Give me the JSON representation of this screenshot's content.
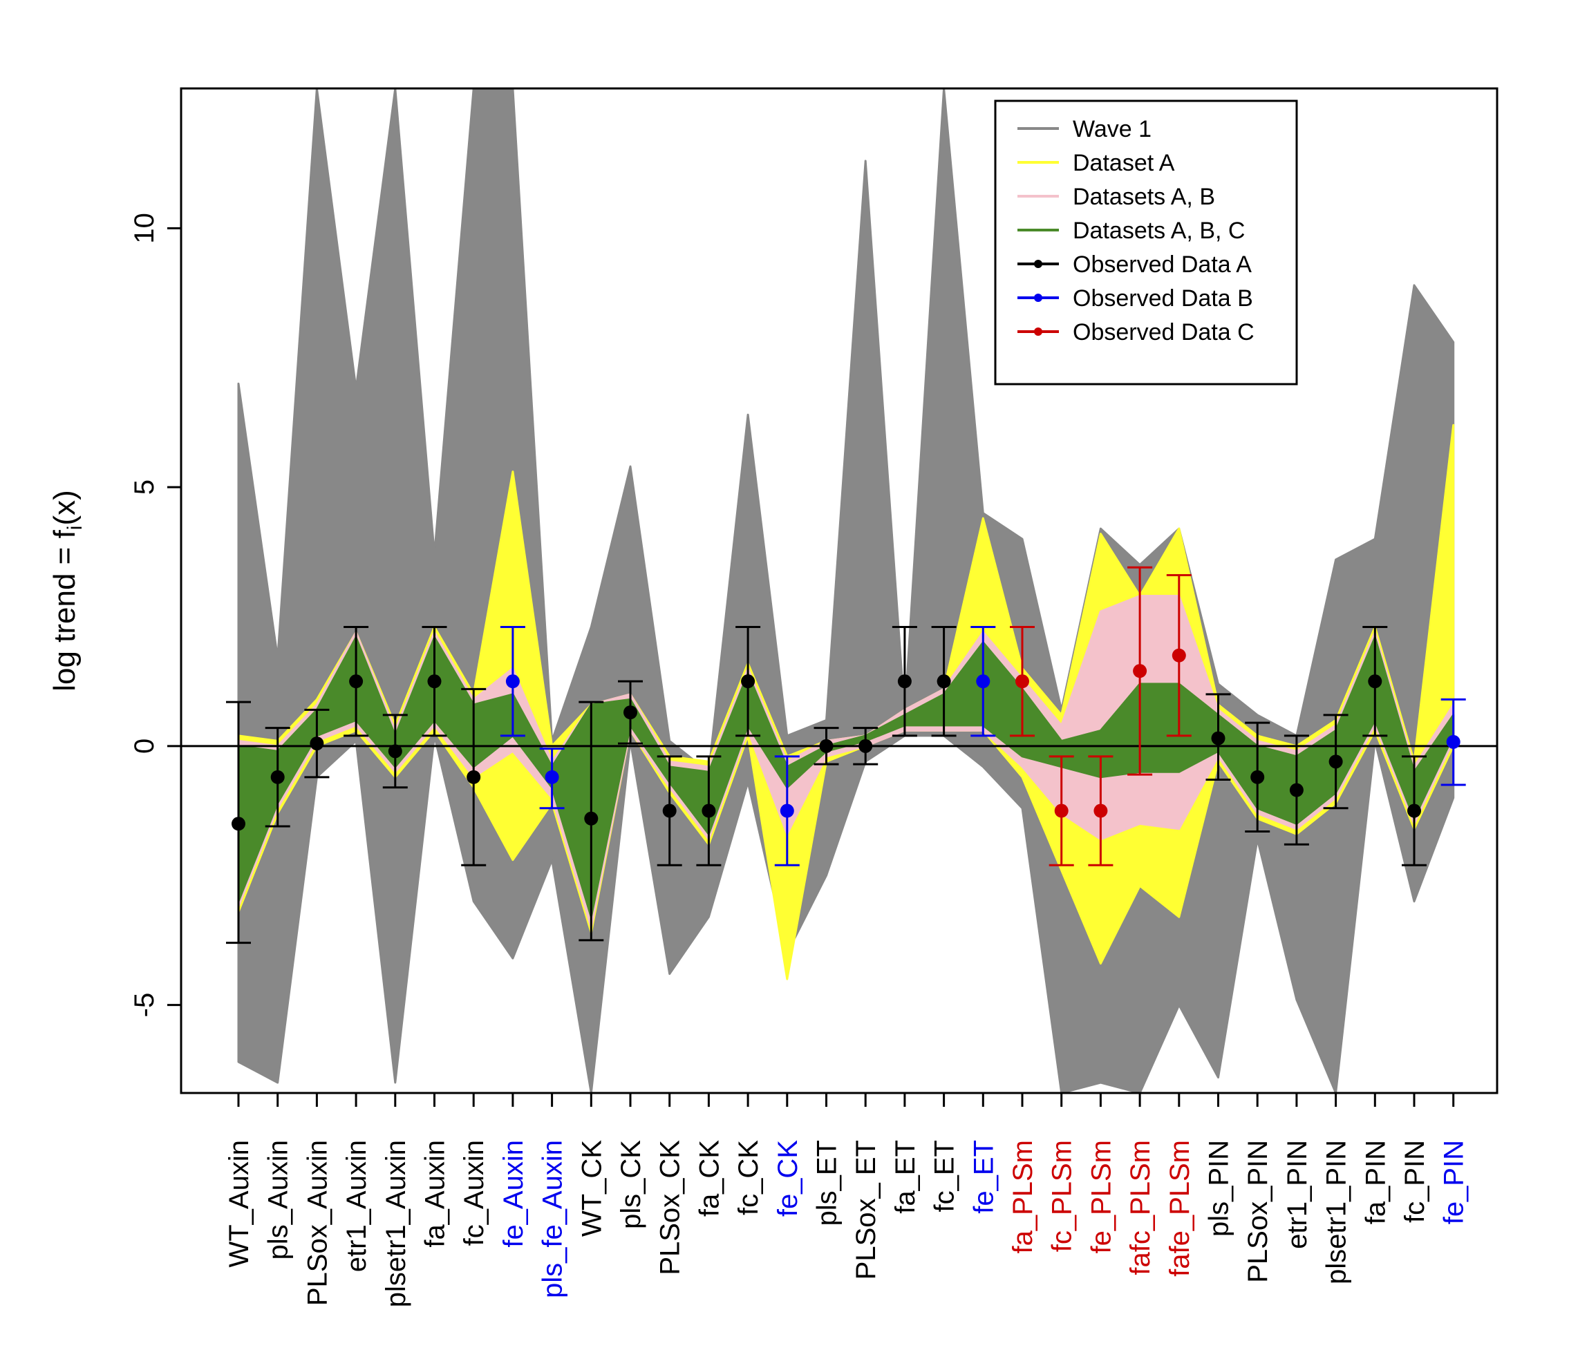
{
  "chart_data": {
    "type": "line",
    "title": "",
    "xlabel": "",
    "ylabel": "log trend = f",
    "ylabel_sub": "i",
    "ylabel_tail": "(x)",
    "ylim": [
      -6.7,
      12.7
    ],
    "yticks": [
      -5,
      0,
      5,
      10
    ],
    "categories": [
      "WT_Auxin",
      "pls_Auxin",
      "PLSox_Auxin",
      "etr1_Auxin",
      "plsetr1_Auxin",
      "fa_Auxin",
      "fc_Auxin",
      "fe_Auxin",
      "pls_fe_Auxin",
      "WT_CK",
      "pls_CK",
      "PLSox_CK",
      "fa_CK",
      "fc_CK",
      "fe_CK",
      "pls_ET",
      "PLSox_ ET",
      "fa_ET",
      "fc_ET",
      "fe_ET",
      "fa_PLSm",
      "fc_PLSm",
      "fe_PLSm",
      "fafc_PLSm",
      "fafe_PLSm",
      "pls_PIN",
      "PLSox_PIN",
      "etr1_PIN",
      "plsetr1_PIN",
      "fa_PIN",
      "fc_PIN",
      "fe_PIN"
    ],
    "category_groups": [
      "A",
      "A",
      "A",
      "A",
      "A",
      "A",
      "A",
      "B",
      "B",
      "A",
      "A",
      "A",
      "A",
      "A",
      "B",
      "A",
      "A",
      "A",
      "A",
      "B",
      "C",
      "C",
      "C",
      "C",
      "C",
      "A",
      "A",
      "A",
      "A",
      "A",
      "A",
      "B"
    ],
    "group_colors": {
      "A": "#000000",
      "B": "#0000ee",
      "C": "#cc0000"
    },
    "series": [
      {
        "name": "Wave 1",
        "color": "#888888",
        "upper": [
          7.0,
          1.7,
          12.7,
          6.9,
          12.7,
          3.7,
          12.7,
          12.7,
          0.1,
          2.3,
          5.4,
          0.1,
          -0.5,
          6.4,
          0.2,
          0.5,
          11.3,
          0.6,
          12.7,
          4.5,
          4.0,
          0.7,
          4.2,
          3.5,
          4.2,
          1.2,
          0.6,
          0.2,
          3.6,
          4.0,
          8.9,
          7.8
        ],
        "lower": [
          -6.1,
          -6.5,
          -0.6,
          0.1,
          -6.5,
          0.2,
          -3.0,
          -4.1,
          -2.2,
          -6.7,
          0.1,
          -4.4,
          -3.3,
          -0.7,
          -4.0,
          -2.5,
          -0.3,
          0.2,
          0.2,
          -0.4,
          -1.2,
          -6.7,
          -6.5,
          -6.7,
          -5.0,
          -6.4,
          -1.8,
          -4.9,
          -6.7,
          0.1,
          -3.0,
          -1.0
        ]
      },
      {
        "name": "Dataset   A",
        "color": "#ffff33",
        "upper": [
          0.2,
          0.1,
          0.9,
          2.2,
          0.4,
          2.3,
          1.0,
          5.3,
          0.0,
          0.8,
          1.0,
          -0.2,
          -0.3,
          1.6,
          -0.2,
          0.1,
          0.2,
          0.7,
          1.1,
          4.4,
          1.5,
          0.6,
          4.1,
          2.9,
          4.2,
          0.8,
          0.2,
          0.0,
          0.5,
          2.3,
          -0.3,
          6.2
        ],
        "lower": [
          -3.2,
          -1.3,
          0.0,
          0.3,
          -0.6,
          0.3,
          -0.8,
          -2.2,
          -1.1,
          -3.6,
          0.3,
          -0.9,
          -1.9,
          0.2,
          -4.5,
          -0.3,
          0.0,
          0.3,
          0.3,
          0.3,
          -0.6,
          -2.4,
          -4.2,
          -2.7,
          -3.3,
          -0.3,
          -1.4,
          -1.7,
          -1.1,
          0.3,
          -1.6,
          0.0
        ]
      },
      {
        "name": "Datasets A, B",
        "color": "#f4c2cb",
        "upper": [
          0.1,
          0.0,
          0.8,
          2.2,
          0.3,
          2.2,
          0.9,
          1.5,
          -0.3,
          0.8,
          1.0,
          -0.3,
          -0.4,
          1.5,
          -0.3,
          0.1,
          0.2,
          0.7,
          1.1,
          2.2,
          1.3,
          0.4,
          2.6,
          2.9,
          2.9,
          0.7,
          0.1,
          -0.1,
          0.4,
          2.2,
          -0.4,
          0.8
        ],
        "lower": [
          -3.1,
          -1.2,
          0.1,
          0.4,
          -0.5,
          0.4,
          -0.6,
          -0.1,
          -1.0,
          -3.5,
          0.3,
          -0.8,
          -1.8,
          0.3,
          -1.7,
          -0.2,
          0.0,
          0.3,
          0.3,
          0.3,
          -0.4,
          -1.3,
          -1.8,
          -1.5,
          -1.6,
          -0.2,
          -1.3,
          -1.6,
          -1.0,
          0.4,
          -1.5,
          0.1
        ]
      },
      {
        "name": "Datasets A, B, C",
        "color": "#4a8a2a",
        "upper": [
          0.0,
          -0.1,
          0.7,
          2.1,
          0.2,
          2.1,
          0.8,
          1.0,
          -0.4,
          0.8,
          0.9,
          -0.4,
          -0.5,
          1.4,
          -0.4,
          0.0,
          0.2,
          0.6,
          1.0,
          2.0,
          1.1,
          0.1,
          0.3,
          1.2,
          1.2,
          0.6,
          0.0,
          -0.2,
          0.3,
          2.1,
          -0.5,
          0.6
        ],
        "lower": [
          -3.0,
          -1.1,
          0.2,
          0.5,
          -0.4,
          0.5,
          -0.4,
          0.2,
          -0.8,
          -3.3,
          0.4,
          -0.7,
          -1.7,
          0.4,
          -0.8,
          -0.1,
          0.1,
          0.4,
          0.4,
          0.4,
          -0.2,
          -0.4,
          -0.6,
          -0.5,
          -0.5,
          -0.1,
          -1.2,
          -1.5,
          -0.9,
          0.5,
          -1.4,
          0.2
        ]
      }
    ],
    "observed": {
      "values": [
        -1.5,
        -0.6,
        0.05,
        1.25,
        -0.1,
        1.25,
        -0.6,
        1.25,
        -0.6,
        -1.4,
        0.65,
        -1.25,
        -1.25,
        1.25,
        -1.25,
        0.0,
        0.0,
        1.25,
        1.25,
        1.25,
        1.25,
        -1.25,
        -1.25,
        1.45,
        1.75,
        0.15,
        -0.6,
        -0.85,
        -0.3,
        1.25,
        -1.25,
        0.08
      ],
      "err_low": [
        -3.8,
        -1.55,
        -0.6,
        0.2,
        -0.8,
        0.2,
        -2.3,
        0.2,
        -1.2,
        -3.75,
        0.05,
        -2.3,
        -2.3,
        0.2,
        -2.3,
        -0.35,
        -0.35,
        0.2,
        0.2,
        0.2,
        0.2,
        -2.3,
        -2.3,
        -0.55,
        0.2,
        -0.65,
        -1.65,
        -1.9,
        -1.2,
        0.2,
        -2.3,
        -0.75
      ],
      "err_high": [
        0.85,
        0.35,
        0.7,
        2.3,
        0.6,
        2.3,
        1.1,
        2.3,
        -0.05,
        0.85,
        1.25,
        -0.2,
        -0.2,
        2.3,
        -0.2,
        0.35,
        0.35,
        2.3,
        2.3,
        2.3,
        2.3,
        -0.2,
        -0.2,
        3.45,
        3.3,
        1.0,
        0.45,
        0.2,
        0.6,
        2.3,
        -0.2,
        0.9
      ]
    },
    "legend": [
      {
        "label": "Wave 1",
        "color": "#888888",
        "kind": "line"
      },
      {
        "label": "Dataset   A",
        "color": "#ffff33",
        "kind": "line"
      },
      {
        "label": "Datasets A, B",
        "color": "#f4c2cb",
        "kind": "line"
      },
      {
        "label": "Datasets A, B, C",
        "color": "#4a8a2a",
        "kind": "line"
      },
      {
        "label": "Observed Data A",
        "color": "#000000",
        "kind": "point"
      },
      {
        "label": "Observed Data B",
        "color": "#0000ee",
        "kind": "point"
      },
      {
        "label": "Observed Data C",
        "color": "#cc0000",
        "kind": "point"
      }
    ],
    "legend_position": "top-right",
    "reference_line_y": 0,
    "grid": false
  }
}
